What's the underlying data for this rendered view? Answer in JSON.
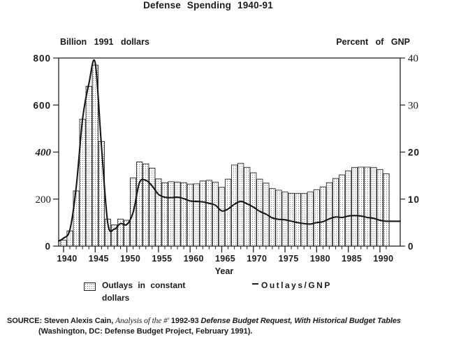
{
  "title": "Defense Spending 1940-91",
  "axes": {
    "left_caption": "Billion 1991 dollars",
    "right_caption": "Percent of GNP",
    "x_label": "Year",
    "left_ticks": [
      "800",
      "600",
      "400",
      "200",
      "0"
    ],
    "right_ticks": [
      "40",
      "30",
      "20",
      "10",
      "0"
    ],
    "x_ticks": [
      "1940",
      "1945",
      "1950",
      "1955",
      "1960",
      "1965",
      "1970",
      "1975",
      "1980",
      "1985",
      "1990"
    ]
  },
  "legend": {
    "bar_label_line1": "Outlays in constant",
    "bar_label_line2": "dollars",
    "line_label": "Outlays/GNP"
  },
  "source": {
    "prefix": "SOURCE: Steven Alexis Cain, ",
    "work_title_italic": "Analysis of the #' ",
    "edition_bold": "1992-93 ",
    "subtitle_bold_italic": "Defense Budget Request, With Historical Budget Tables",
    "line2": "(Washington, DC: Defense Budget Project, February 1991)."
  },
  "colors": {
    "ink": "#1b1b1b",
    "background": "#ffffff"
  },
  "chart_data": {
    "type": "bar",
    "combo": "bar+line",
    "title": "Defense Spending 1940-91",
    "xlabel": "Year",
    "ylabel_left": "Billion 1991 dollars",
    "ylabel_right": "Percent of GNP",
    "ylim_left": [
      0,
      800
    ],
    "ylim_right": [
      0,
      40
    ],
    "grid": false,
    "legend_position": "bottom",
    "x": [
      1940,
      1941,
      1942,
      1943,
      1944,
      1945,
      1946,
      1947,
      1948,
      1949,
      1950,
      1951,
      1952,
      1953,
      1954,
      1955,
      1956,
      1957,
      1958,
      1959,
      1960,
      1961,
      1962,
      1963,
      1964,
      1965,
      1966,
      1967,
      1968,
      1969,
      1970,
      1971,
      1972,
      1973,
      1974,
      1975,
      1976,
      1977,
      1978,
      1979,
      1980,
      1981,
      1982,
      1983,
      1984,
      1985,
      1986,
      1987,
      1988,
      1989,
      1990,
      1991
    ],
    "series": [
      {
        "name": "Outlays in constant dollars",
        "render": "bar",
        "axis": "left",
        "unit": "billion 1991 dollars",
        "values": [
          25,
          65,
          235,
          540,
          680,
          770,
          445,
          115,
          90,
          115,
          110,
          290,
          358,
          350,
          332,
          286,
          270,
          274,
          272,
          270,
          264,
          265,
          277,
          280,
          272,
          250,
          285,
          345,
          352,
          335,
          312,
          285,
          268,
          245,
          238,
          230,
          225,
          224,
          224,
          230,
          240,
          252,
          270,
          288,
          303,
          320,
          335,
          336,
          336,
          335,
          326,
          308
        ]
      },
      {
        "name": "Outlays/GNP",
        "render": "line",
        "axis": "right",
        "unit": "percent of GNP",
        "values": [
          1.7,
          3.5,
          12.5,
          27,
          34.5,
          39,
          21,
          4.8,
          3.6,
          4.8,
          4.6,
          7.2,
          13.5,
          14.0,
          12.8,
          11.0,
          10.4,
          10.3,
          10.4,
          10.1,
          9.6,
          9.5,
          9.4,
          9.1,
          8.7,
          7.5,
          7.9,
          8.9,
          9.5,
          9.0,
          8.3,
          7.4,
          6.8,
          6.0,
          5.7,
          5.6,
          5.3,
          5.0,
          4.8,
          4.7,
          5.0,
          5.2,
          5.8,
          6.2,
          6.1,
          6.4,
          6.5,
          6.4,
          6.1,
          5.9,
          5.5,
          5.3
        ]
      }
    ]
  }
}
